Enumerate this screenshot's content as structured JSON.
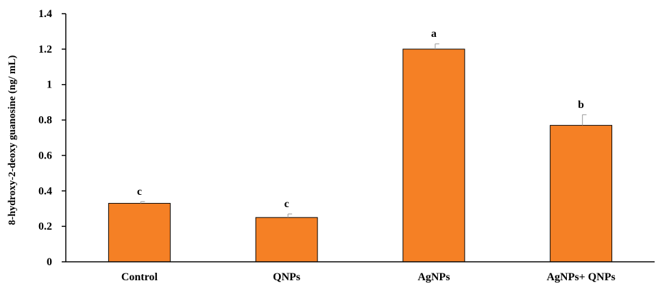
{
  "chart_data": {
    "type": "bar",
    "title": "",
    "xlabel": "",
    "ylabel": "8-hydroxy-2-deoxy guanosine (ng/ mL)",
    "categories": [
      "Control",
      "QNPs",
      "AgNPs",
      "AgNPs+ QNPs"
    ],
    "values": [
      0.33,
      0.25,
      1.2,
      0.77
    ],
    "errors": [
      0.01,
      0.02,
      0.03,
      0.06
    ],
    "significance": [
      "c",
      "c",
      "a",
      "b"
    ],
    "ylim": [
      0,
      1.4
    ],
    "yticks": [
      "0",
      "0.2",
      "0.4",
      "0.6",
      "0.8",
      "1",
      "1.2",
      "1.4"
    ],
    "ytick_values": [
      0,
      0.2,
      0.4,
      0.6,
      0.8,
      1.0,
      1.2,
      1.4
    ],
    "grid": false,
    "legend": "none",
    "colors": {
      "bar": "#f58025",
      "bar_edge": "#000000",
      "error_bar": "#a6a6a6",
      "axis": "#000000"
    }
  }
}
